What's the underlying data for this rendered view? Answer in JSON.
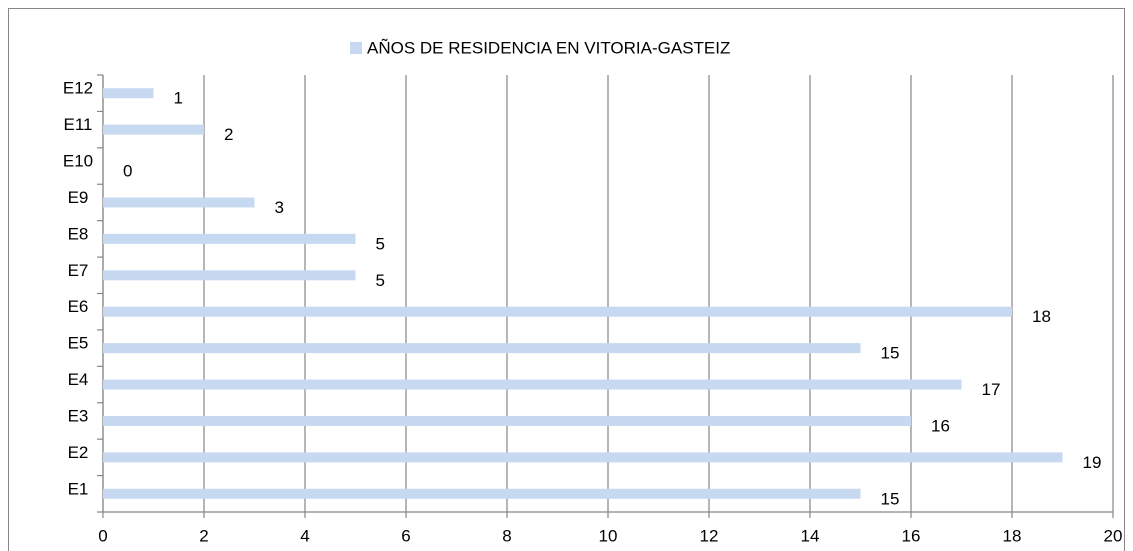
{
  "chart_data": {
    "type": "bar",
    "orientation": "horizontal",
    "categories": [
      "E1",
      "E2",
      "E3",
      "E4",
      "E5",
      "E6",
      "E7",
      "E8",
      "E9",
      "E10",
      "E11",
      "E12"
    ],
    "series": [
      {
        "name": "AÑOS DE RESIDENCIA EN VITORIA-GASTEIZ",
        "color": "#c6d9f1",
        "values": [
          15,
          19,
          16,
          17,
          15,
          18,
          5,
          5,
          3,
          0,
          2,
          1
        ]
      }
    ],
    "xlim": [
      0,
      20
    ],
    "xticks": [
      0,
      2,
      4,
      6,
      8,
      10,
      12,
      14,
      16,
      18,
      20
    ],
    "grid": true,
    "legend": "top",
    "data_labels": true
  }
}
